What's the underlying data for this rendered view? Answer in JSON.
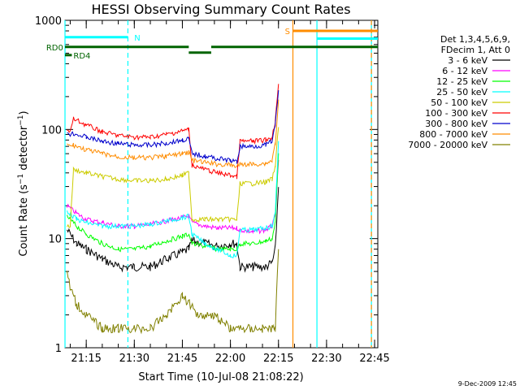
{
  "chart_data": {
    "type": "line",
    "title": "HESSI Observing Summary Count Rates",
    "xlabel": "Start Time (10-Jul-08 21:08:22)",
    "ylabel": "Count Rate (s⁻¹ detector⁻¹)",
    "ylabel_main": "Count Rate (s",
    "ylabel_sup1": "−1",
    "ylabel_mid": " detector",
    "ylabel_sup2": "−1",
    "ylabel_end": ")",
    "x_scale": "time",
    "y_scale": "log",
    "xlim": [
      "21:08:22",
      "22:46:00"
    ],
    "ylim": [
      1,
      1000
    ],
    "x_ticks": [
      "21:15",
      "21:30",
      "21:45",
      "22:00",
      "22:15",
      "22:30",
      "22:45"
    ],
    "y_ticks": [
      "1",
      "10",
      "100",
      "1000"
    ],
    "legend_header": [
      "Det 1,3,4,5,6,9,",
      "FDecim 1, Att 0"
    ],
    "legend_position": "right",
    "footer_date": "9-Dec-2009 12:45",
    "series": [
      {
        "name": "3 - 6 keV",
        "color": "#000000",
        "x": [
          "21:09:00",
          "21:12:00",
          "21:15:00",
          "21:20:00",
          "21:25:00",
          "21:30:00",
          "21:35:00",
          "21:40:00",
          "21:45:00",
          "21:47:00",
          "21:48:00",
          "21:52:00",
          "21:56:00",
          "22:00:00",
          "22:02:00",
          "22:03:00",
          "22:07:00",
          "22:11:00",
          "22:13:00",
          "22:14:00",
          "22:15:00"
        ],
        "y": [
          12,
          9,
          8,
          6.5,
          5.5,
          5.5,
          5.5,
          6.5,
          7.5,
          8,
          9.5,
          9,
          8.5,
          9,
          9,
          5.5,
          5.5,
          5.5,
          6,
          8,
          30
        ]
      },
      {
        "name": "6 - 12 keV",
        "color": "#ff00ff",
        "x": [
          "21:09:00",
          "21:12:00",
          "21:15:00",
          "21:20:00",
          "21:25:00",
          "21:30:00",
          "21:35:00",
          "21:40:00",
          "21:45:00",
          "21:47:00",
          "21:48:00",
          "21:52:00",
          "21:56:00",
          "22:00:00",
          "22:02:00",
          "22:03:00",
          "22:07:00",
          "22:11:00",
          "22:13:00",
          "22:14:00",
          "22:15:00"
        ],
        "y": [
          20,
          17,
          15,
          14,
          13,
          13,
          13.5,
          14.5,
          15.5,
          16,
          14,
          13,
          12.5,
          12.5,
          12.5,
          12,
          11.5,
          12,
          13,
          16,
          50
        ]
      },
      {
        "name": "12 - 25 keV",
        "color": "#00ff00",
        "x": [
          "21:09:00",
          "21:12:00",
          "21:15:00",
          "21:20:00",
          "21:25:00",
          "21:30:00",
          "21:35:00",
          "21:40:00",
          "21:45:00",
          "21:47:00",
          "21:48:00",
          "21:52:00",
          "21:56:00",
          "22:00:00",
          "22:02:00",
          "22:03:00",
          "22:07:00",
          "22:11:00",
          "22:13:00",
          "22:14:00",
          "22:15:00"
        ],
        "y": [
          16,
          13,
          11,
          9,
          8,
          8,
          8.5,
          9.5,
          10.5,
          11,
          9,
          8.5,
          8,
          8,
          8,
          9,
          9,
          9.5,
          10,
          14,
          60
        ]
      },
      {
        "name": "25 - 50 keV",
        "color": "#00ffff",
        "x": [
          "21:09:00",
          "21:12:00",
          "21:15:00",
          "21:20:00",
          "21:25:00",
          "21:30:00",
          "21:35:00",
          "21:40:00",
          "21:45:00",
          "21:47:00",
          "21:48:00",
          "21:52:00",
          "21:56:00",
          "22:00:00",
          "22:02:00",
          "22:03:00",
          "22:07:00",
          "22:11:00",
          "22:13:00",
          "22:14:00",
          "22:15:00"
        ],
        "y": [
          18,
          15,
          14,
          13,
          13,
          13,
          13.5,
          14.5,
          15.5,
          16,
          11,
          9,
          8,
          7,
          7,
          12,
          12,
          12.5,
          13,
          17,
          80
        ]
      },
      {
        "name": "50 - 100 keV",
        "color": "#cccc00",
        "x": [
          "21:09:00",
          "21:10:00",
          "21:11:00",
          "21:15:00",
          "21:20:00",
          "21:25:00",
          "21:30:00",
          "21:35:00",
          "21:40:00",
          "21:45:00",
          "21:47:00",
          "21:48:00",
          "21:52:00",
          "21:56:00",
          "22:00:00",
          "22:02:00",
          "22:03:00",
          "22:07:00",
          "22:11:00",
          "22:13:00",
          "22:14:00",
          "22:15:00"
        ],
        "y": [
          13,
          13,
          43,
          40,
          37,
          35,
          34,
          34,
          35,
          38,
          40,
          15,
          15,
          15,
          15,
          15,
          32,
          32,
          33,
          35,
          45,
          110
        ]
      },
      {
        "name": "100 - 300 keV",
        "color": "#ff0000",
        "x": [
          "21:09:00",
          "21:10:00",
          "21:11:00",
          "21:15:00",
          "21:20:00",
          "21:25:00",
          "21:30:00",
          "21:35:00",
          "21:40:00",
          "21:45:00",
          "21:47:00",
          "21:48:00",
          "21:52:00",
          "21:56:00",
          "22:00:00",
          "22:02:00",
          "22:03:00",
          "22:07:00",
          "22:11:00",
          "22:13:00",
          "22:14:00",
          "22:15:00"
        ],
        "y": [
          100,
          95,
          125,
          110,
          95,
          88,
          85,
          85,
          90,
          97,
          100,
          47,
          43,
          40,
          38,
          37,
          78,
          78,
          80,
          85,
          120,
          250
        ]
      },
      {
        "name": "300 - 800 keV",
        "color": "#0000cc",
        "x": [
          "21:09:00",
          "21:10:00",
          "21:11:00",
          "21:15:00",
          "21:20:00",
          "21:25:00",
          "21:30:00",
          "21:35:00",
          "21:40:00",
          "21:45:00",
          "21:47:00",
          "21:48:00",
          "21:52:00",
          "21:56:00",
          "22:00:00",
          "22:02:00",
          "22:03:00",
          "22:07:00",
          "22:11:00",
          "22:13:00",
          "22:14:00",
          "22:15:00"
        ],
        "y": [
          95,
          90,
          92,
          85,
          78,
          74,
          72,
          72,
          75,
          80,
          82,
          60,
          57,
          54,
          52,
          50,
          70,
          70,
          72,
          78,
          110,
          220
        ]
      },
      {
        "name": "800 - 7000 keV",
        "color": "#ff8c00",
        "x": [
          "21:09:00",
          "21:10:00",
          "21:11:00",
          "21:15:00",
          "21:20:00",
          "21:25:00",
          "21:30:00",
          "21:35:00",
          "21:40:00",
          "21:45:00",
          "21:47:00",
          "21:48:00",
          "21:52:00",
          "21:56:00",
          "22:00:00",
          "22:02:00",
          "22:03:00",
          "22:07:00",
          "22:11:00",
          "22:13:00",
          "22:14:00",
          "22:15:00"
        ],
        "y": [
          75,
          70,
          72,
          65,
          60,
          56,
          55,
          55,
          57,
          60,
          62,
          52,
          50,
          48,
          47,
          46,
          48,
          48,
          49,
          52,
          75,
          180
        ]
      },
      {
        "name": "7000 - 20000 keV",
        "color": "#808000",
        "x": [
          "21:09:00",
          "21:10:00",
          "21:12:00",
          "21:15:00",
          "21:20:00",
          "21:25:00",
          "21:30:00",
          "21:35:00",
          "21:40:00",
          "21:45:00",
          "21:50:00",
          "21:55:00",
          "22:00:00",
          "22:05:00",
          "22:10:00",
          "22:13:00",
          "22:14:00",
          "22:15:00"
        ],
        "y": [
          5,
          3.5,
          2.5,
          2,
          1.5,
          1.5,
          1.5,
          1.5,
          2,
          3,
          2,
          2,
          1.5,
          1.5,
          1.5,
          1.5,
          1.5,
          8
        ]
      }
    ],
    "vertical_lines": [
      {
        "x": "21:28:00",
        "color": "#00ffff",
        "style": "dashed"
      },
      {
        "x": "22:19:30",
        "color": "#ff8c00",
        "style": "solid"
      },
      {
        "x": "22:27:00",
        "color": "#00ffff",
        "style": "solid"
      },
      {
        "x": "22:44:00",
        "color": "#00ffff",
        "style": "solid"
      },
      {
        "x": "22:44:00",
        "color": "#ff8c00",
        "style": "dashed"
      },
      {
        "x": "21:08:22",
        "color": "#00ffff",
        "style": "solid"
      }
    ],
    "status_bars": [
      {
        "label": "N",
        "color": "#00ffff",
        "y": 700,
        "start": "21:08:22",
        "end": "21:28:00",
        "label_at": "21:30:00"
      },
      {
        "label": "S",
        "color": "#ff8c00",
        "y": 800,
        "start": "22:19:30",
        "end": "22:46:00",
        "label_at": "22:17:00"
      },
      {
        "label": "",
        "color": "#00ffff",
        "y": 680,
        "start": "22:27:00",
        "end": "22:46:00"
      },
      {
        "label": "RD0",
        "color": "#006400",
        "y": 570,
        "start": "21:08:22",
        "end": "21:47:00",
        "label_at": "21:02:30"
      },
      {
        "label": "",
        "color": "#006400",
        "y": 570,
        "start": "21:47:00",
        "end": "21:54:00",
        "offset": 7
      },
      {
        "label": "",
        "color": "#006400",
        "y": 570,
        "start": "21:54:00",
        "end": "22:46:00"
      },
      {
        "label": "RD4",
        "color": "#006400",
        "y": 480,
        "start": "21:08:22",
        "end": "21:10:30",
        "label_at": "21:11:00"
      }
    ]
  }
}
